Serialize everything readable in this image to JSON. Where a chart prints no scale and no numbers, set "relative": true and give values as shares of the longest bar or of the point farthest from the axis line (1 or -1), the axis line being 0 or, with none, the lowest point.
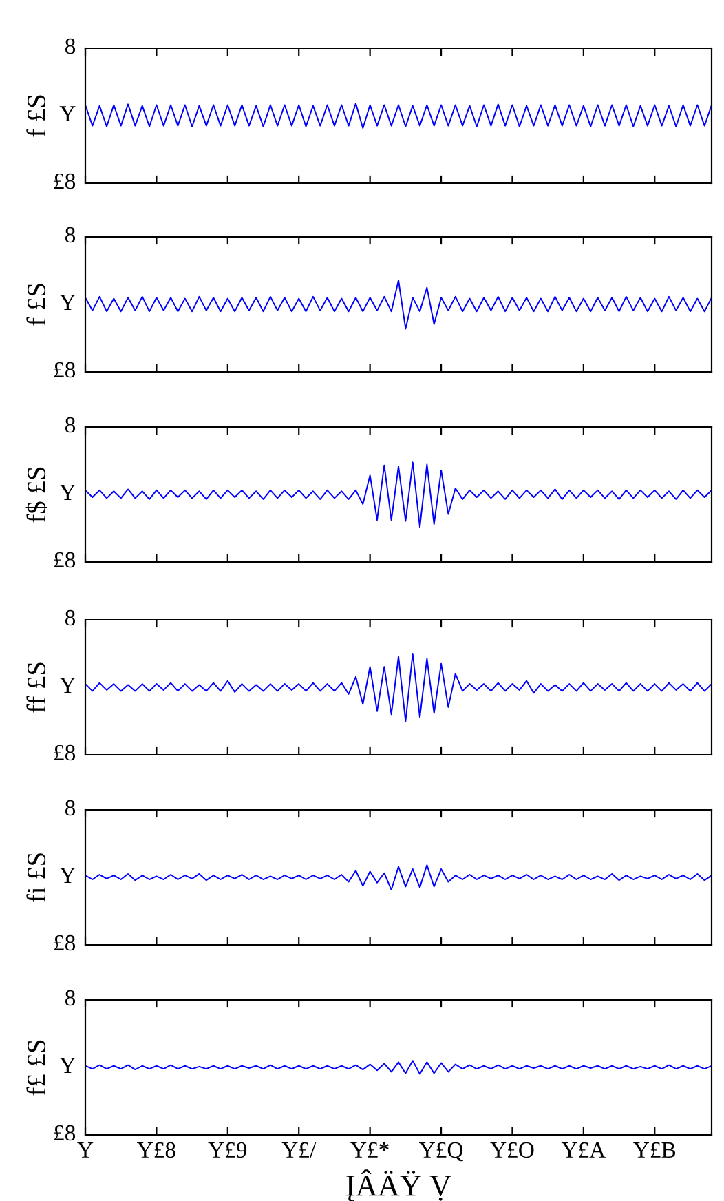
{
  "chart_data": [
    {
      "type": "line",
      "ylabel": "f £S",
      "relative": true,
      "annotations": [
        "8",
        "Y",
        "£8"
      ],
      "categories": [
        null,
        null,
        null,
        null,
        null,
        null,
        null,
        null,
        null,
        null,
        null,
        null,
        null,
        null,
        null,
        null,
        null,
        null,
        null,
        null,
        null,
        null,
        null,
        null,
        null,
        null,
        null,
        null,
        null,
        null,
        null,
        null,
        null,
        null,
        null,
        null,
        null,
        null,
        null,
        null,
        null,
        null,
        null,
        null,
        null,
        null,
        null,
        null,
        null,
        null,
        null,
        null,
        null,
        null,
        null,
        null,
        null,
        null,
        null,
        null,
        null,
        null,
        null,
        null,
        null,
        null,
        null,
        null,
        null,
        null,
        null,
        null,
        null,
        null,
        null,
        null,
        null,
        null,
        null,
        null,
        null,
        null,
        null,
        null,
        null,
        null,
        null,
        null,
        null
      ],
      "series": [
        {
          "color": "#0000ff",
          "values": [
            0.98,
            0.72,
            0.97,
            0.71,
            0.98,
            0.72,
            0.99,
            0.72,
            0.97,
            0.71,
            0.98,
            0.72,
            0.98,
            0.72,
            0.98,
            0.71,
            0.97,
            0.72,
            0.98,
            0.72,
            0.98,
            0.72,
            0.98,
            0.72,
            0.97,
            0.71,
            0.98,
            0.72,
            0.98,
            0.72,
            0.98,
            0.71,
            0.97,
            0.72,
            0.98,
            0.72,
            0.98,
            0.72,
            1,
            0.69,
            0.98,
            0.72,
            0.98,
            0.72,
            0.98,
            0.71,
            0.97,
            0.72,
            0.98,
            0.72,
            0.98,
            0.72,
            0.98,
            0.72,
            0.97,
            0.71,
            0.98,
            0.72,
            0.99,
            0.72,
            0.98,
            0.71,
            0.97,
            0.72,
            0.98,
            0.72,
            0.98,
            0.72,
            0.98,
            0.72,
            0.97,
            0.71,
            0.98,
            0.72,
            0.98,
            0.72,
            0.98,
            0.71,
            0.97,
            0.72,
            0.98,
            0.72,
            0.97,
            0.71,
            0.98,
            0.72,
            0.98,
            0.72,
            0.98
          ]
        }
      ]
    },
    {
      "type": "line",
      "ylabel": "f £S",
      "relative": true,
      "annotations": [
        "8",
        "Y",
        "£8"
      ],
      "categories": [
        null,
        null,
        null,
        null,
        null,
        null,
        null,
        null,
        null,
        null,
        null,
        null,
        null,
        null,
        null,
        null,
        null,
        null,
        null,
        null,
        null,
        null,
        null,
        null,
        null,
        null,
        null,
        null,
        null,
        null,
        null,
        null,
        null,
        null,
        null,
        null,
        null,
        null,
        null,
        null,
        null,
        null,
        null,
        null,
        null,
        null,
        null,
        null,
        null,
        null,
        null,
        null,
        null,
        null,
        null,
        null,
        null,
        null,
        null,
        null,
        null,
        null,
        null,
        null,
        null,
        null,
        null,
        null,
        null,
        null,
        null,
        null,
        null,
        null,
        null,
        null,
        null,
        null,
        null,
        null,
        null,
        null,
        null,
        null,
        null,
        null,
        null,
        null,
        null
      ],
      "series": [
        {
          "color": "#0000ff",
          "values": [
            0.81,
            0.67,
            0.82,
            0.66,
            0.8,
            0.66,
            0.81,
            0.67,
            0.82,
            0.66,
            0.81,
            0.67,
            0.81,
            0.66,
            0.8,
            0.66,
            0.82,
            0.67,
            0.81,
            0.66,
            0.8,
            0.66,
            0.81,
            0.67,
            0.81,
            0.66,
            0.82,
            0.67,
            0.81,
            0.66,
            0.8,
            0.66,
            0.82,
            0.67,
            0.81,
            0.66,
            0.8,
            0.66,
            0.81,
            0.66,
            0.81,
            0.67,
            0.82,
            0.66,
            1,
            0.47,
            0.81,
            0.66,
            0.92,
            0.52,
            0.81,
            0.67,
            0.82,
            0.66,
            0.8,
            0.66,
            0.81,
            0.67,
            0.82,
            0.66,
            0.81,
            0.67,
            0.81,
            0.66,
            0.8,
            0.66,
            0.82,
            0.67,
            0.81,
            0.66,
            0.8,
            0.66,
            0.81,
            0.67,
            0.81,
            0.66,
            0.82,
            0.67,
            0.81,
            0.66,
            0.8,
            0.66,
            0.82,
            0.67,
            0.81,
            0.66,
            0.8,
            0.66,
            0.81
          ]
        }
      ]
    },
    {
      "type": "line",
      "ylabel": "f$ £S",
      "relative": true,
      "annotations": [
        "8",
        "Y",
        "£8"
      ],
      "categories": [
        null,
        null,
        null,
        null,
        null,
        null,
        null,
        null,
        null,
        null,
        null,
        null,
        null,
        null,
        null,
        null,
        null,
        null,
        null,
        null,
        null,
        null,
        null,
        null,
        null,
        null,
        null,
        null,
        null,
        null,
        null,
        null,
        null,
        null,
        null,
        null,
        null,
        null,
        null,
        null,
        null,
        null,
        null,
        null,
        null,
        null,
        null,
        null,
        null,
        null,
        null,
        null,
        null,
        null,
        null,
        null,
        null,
        null,
        null,
        null,
        null,
        null,
        null,
        null,
        null,
        null,
        null,
        null,
        null,
        null,
        null,
        null,
        null,
        null,
        null,
        null,
        null,
        null,
        null,
        null,
        null,
        null,
        null,
        null,
        null,
        null,
        null,
        null,
        null
      ],
      "series": [
        {
          "color": "#0000ff",
          "values": [
            0.72,
            0.65,
            0.72,
            0.64,
            0.71,
            0.64,
            0.73,
            0.64,
            0.71,
            0.63,
            0.72,
            0.64,
            0.72,
            0.65,
            0.72,
            0.64,
            0.71,
            0.63,
            0.72,
            0.64,
            0.72,
            0.65,
            0.72,
            0.64,
            0.71,
            0.63,
            0.72,
            0.64,
            0.72,
            0.65,
            0.72,
            0.64,
            0.71,
            0.63,
            0.72,
            0.64,
            0.71,
            0.63,
            0.72,
            0.58,
            0.87,
            0.42,
            0.97,
            0.42,
            0.96,
            0.41,
            1,
            0.35,
            0.98,
            0.38,
            0.92,
            0.48,
            0.74,
            0.63,
            0.72,
            0.65,
            0.72,
            0.64,
            0.71,
            0.63,
            0.72,
            0.64,
            0.72,
            0.65,
            0.72,
            0.64,
            0.73,
            0.63,
            0.72,
            0.64,
            0.72,
            0.65,
            0.72,
            0.64,
            0.71,
            0.63,
            0.72,
            0.64,
            0.72,
            0.65,
            0.72,
            0.64,
            0.71,
            0.63,
            0.72,
            0.64,
            0.72,
            0.65,
            0.72
          ]
        }
      ]
    },
    {
      "type": "line",
      "ylabel": "ff £S",
      "relative": true,
      "annotations": [
        "8",
        "Y",
        "£8"
      ],
      "categories": [
        null,
        null,
        null,
        null,
        null,
        null,
        null,
        null,
        null,
        null,
        null,
        null,
        null,
        null,
        null,
        null,
        null,
        null,
        null,
        null,
        null,
        null,
        null,
        null,
        null,
        null,
        null,
        null,
        null,
        null,
        null,
        null,
        null,
        null,
        null,
        null,
        null,
        null,
        null,
        null,
        null,
        null,
        null,
        null,
        null,
        null,
        null,
        null,
        null,
        null,
        null,
        null,
        null,
        null,
        null,
        null,
        null,
        null,
        null,
        null,
        null,
        null,
        null,
        null,
        null,
        null,
        null,
        null,
        null,
        null,
        null,
        null,
        null,
        null,
        null,
        null,
        null,
        null,
        null,
        null,
        null,
        null,
        null,
        null,
        null,
        null,
        null,
        null,
        null
      ],
      "series": [
        {
          "color": "#0000ff",
          "values": [
            0.7,
            0.63,
            0.71,
            0.64,
            0.7,
            0.63,
            0.69,
            0.63,
            0.7,
            0.63,
            0.7,
            0.64,
            0.71,
            0.63,
            0.7,
            0.63,
            0.69,
            0.63,
            0.71,
            0.63,
            0.73,
            0.62,
            0.7,
            0.63,
            0.69,
            0.63,
            0.7,
            0.63,
            0.7,
            0.64,
            0.7,
            0.63,
            0.71,
            0.63,
            0.7,
            0.63,
            0.71,
            0.6,
            0.77,
            0.5,
            0.87,
            0.43,
            0.87,
            0.4,
            0.97,
            0.33,
            1,
            0.37,
            0.95,
            0.41,
            0.9,
            0.47,
            0.8,
            0.63,
            0.7,
            0.64,
            0.7,
            0.63,
            0.71,
            0.63,
            0.7,
            0.64,
            0.73,
            0.61,
            0.7,
            0.63,
            0.69,
            0.63,
            0.7,
            0.63,
            0.71,
            0.63,
            0.7,
            0.64,
            0.7,
            0.63,
            0.71,
            0.63,
            0.7,
            0.63,
            0.7,
            0.63,
            0.71,
            0.64,
            0.7,
            0.63,
            0.71,
            0.63,
            0.7
          ]
        }
      ]
    },
    {
      "type": "line",
      "ylabel": "fi £S",
      "relative": true,
      "annotations": [
        "8",
        "Y",
        "£8"
      ],
      "categories": [
        null,
        null,
        null,
        null,
        null,
        null,
        null,
        null,
        null,
        null,
        null,
        null,
        null,
        null,
        null,
        null,
        null,
        null,
        null,
        null,
        null,
        null,
        null,
        null,
        null,
        null,
        null,
        null,
        null,
        null,
        null,
        null,
        null,
        null,
        null,
        null,
        null,
        null,
        null,
        null,
        null,
        null,
        null,
        null,
        null,
        null,
        null,
        null,
        null,
        null,
        null,
        null,
        null,
        null,
        null,
        null,
        null,
        null,
        null,
        null,
        null,
        null,
        null,
        null,
        null,
        null,
        null,
        null,
        null,
        null,
        null,
        null,
        null,
        null,
        null,
        null,
        null,
        null,
        null,
        null,
        null,
        null,
        null,
        null,
        null,
        null,
        null,
        null,
        null
      ],
      "series": [
        {
          "color": "#0000ff",
          "values": [
            0.87,
            0.82,
            0.88,
            0.83,
            0.87,
            0.82,
            0.89,
            0.81,
            0.87,
            0.82,
            0.86,
            0.82,
            0.88,
            0.82,
            0.87,
            0.83,
            0.89,
            0.81,
            0.87,
            0.82,
            0.87,
            0.83,
            0.88,
            0.82,
            0.87,
            0.82,
            0.86,
            0.82,
            0.87,
            0.83,
            0.87,
            0.82,
            0.87,
            0.83,
            0.87,
            0.82,
            0.88,
            0.79,
            0.93,
            0.74,
            0.92,
            0.78,
            0.9,
            0.69,
            0.98,
            0.73,
            0.95,
            0.72,
            1,
            0.73,
            0.95,
            0.79,
            0.87,
            0.82,
            0.88,
            0.82,
            0.87,
            0.83,
            0.87,
            0.82,
            0.87,
            0.83,
            0.88,
            0.82,
            0.87,
            0.82,
            0.86,
            0.82,
            0.88,
            0.82,
            0.87,
            0.82,
            0.86,
            0.82,
            0.89,
            0.81,
            0.87,
            0.82,
            0.86,
            0.83,
            0.87,
            0.82,
            0.88,
            0.83,
            0.87,
            0.82,
            0.89,
            0.81,
            0.87
          ]
        }
      ]
    },
    {
      "type": "line",
      "ylabel": "f£ £S",
      "xlabel": "ĮÂÄŸ Ṿ",
      "relative": true,
      "annotations": [
        "8",
        "Y",
        "£8"
      ],
      "categories": [
        "Y",
        null,
        null,
        null,
        null,
        null,
        null,
        null,
        null,
        null,
        "Y£8",
        null,
        null,
        null,
        null,
        null,
        null,
        null,
        null,
        null,
        "Y£9",
        null,
        null,
        null,
        null,
        null,
        null,
        null,
        null,
        null,
        "Y£/",
        null,
        null,
        null,
        null,
        null,
        null,
        null,
        null,
        null,
        "Y£*",
        null,
        null,
        null,
        null,
        null,
        null,
        null,
        null,
        null,
        "Y£Q",
        null,
        null,
        null,
        null,
        null,
        null,
        null,
        null,
        null,
        "Y£O",
        null,
        null,
        null,
        null,
        null,
        null,
        null,
        null,
        null,
        "Y£A",
        null,
        null,
        null,
        null,
        null,
        null,
        null,
        null,
        null,
        "Y£B",
        null,
        null,
        null,
        null,
        null,
        null,
        null,
        null
      ],
      "series": [
        {
          "color": "#0000ff",
          "values": [
            0.93,
            0.89,
            0.94,
            0.89,
            0.93,
            0.89,
            0.94,
            0.88,
            0.93,
            0.89,
            0.93,
            0.89,
            0.94,
            0.89,
            0.93,
            0.89,
            0.92,
            0.89,
            0.93,
            0.89,
            0.93,
            0.89,
            0.93,
            0.9,
            0.93,
            0.89,
            0.94,
            0.89,
            0.93,
            0.89,
            0.93,
            0.89,
            0.93,
            0.89,
            0.93,
            0.89,
            0.93,
            0.89,
            0.94,
            0.88,
            0.95,
            0.87,
            0.96,
            0.85,
            0.98,
            0.83,
            1,
            0.82,
            0.98,
            0.83,
            0.97,
            0.85,
            0.95,
            0.89,
            0.94,
            0.89,
            0.93,
            0.89,
            0.94,
            0.89,
            0.93,
            0.89,
            0.93,
            0.9,
            0.93,
            0.89,
            0.93,
            0.89,
            0.93,
            0.89,
            0.93,
            0.9,
            0.93,
            0.89,
            0.93,
            0.89,
            0.93,
            0.89,
            0.92,
            0.89,
            0.93,
            0.89,
            0.94,
            0.89,
            0.93,
            0.89,
            0.93,
            0.89,
            0.93
          ]
        }
      ]
    }
  ]
}
